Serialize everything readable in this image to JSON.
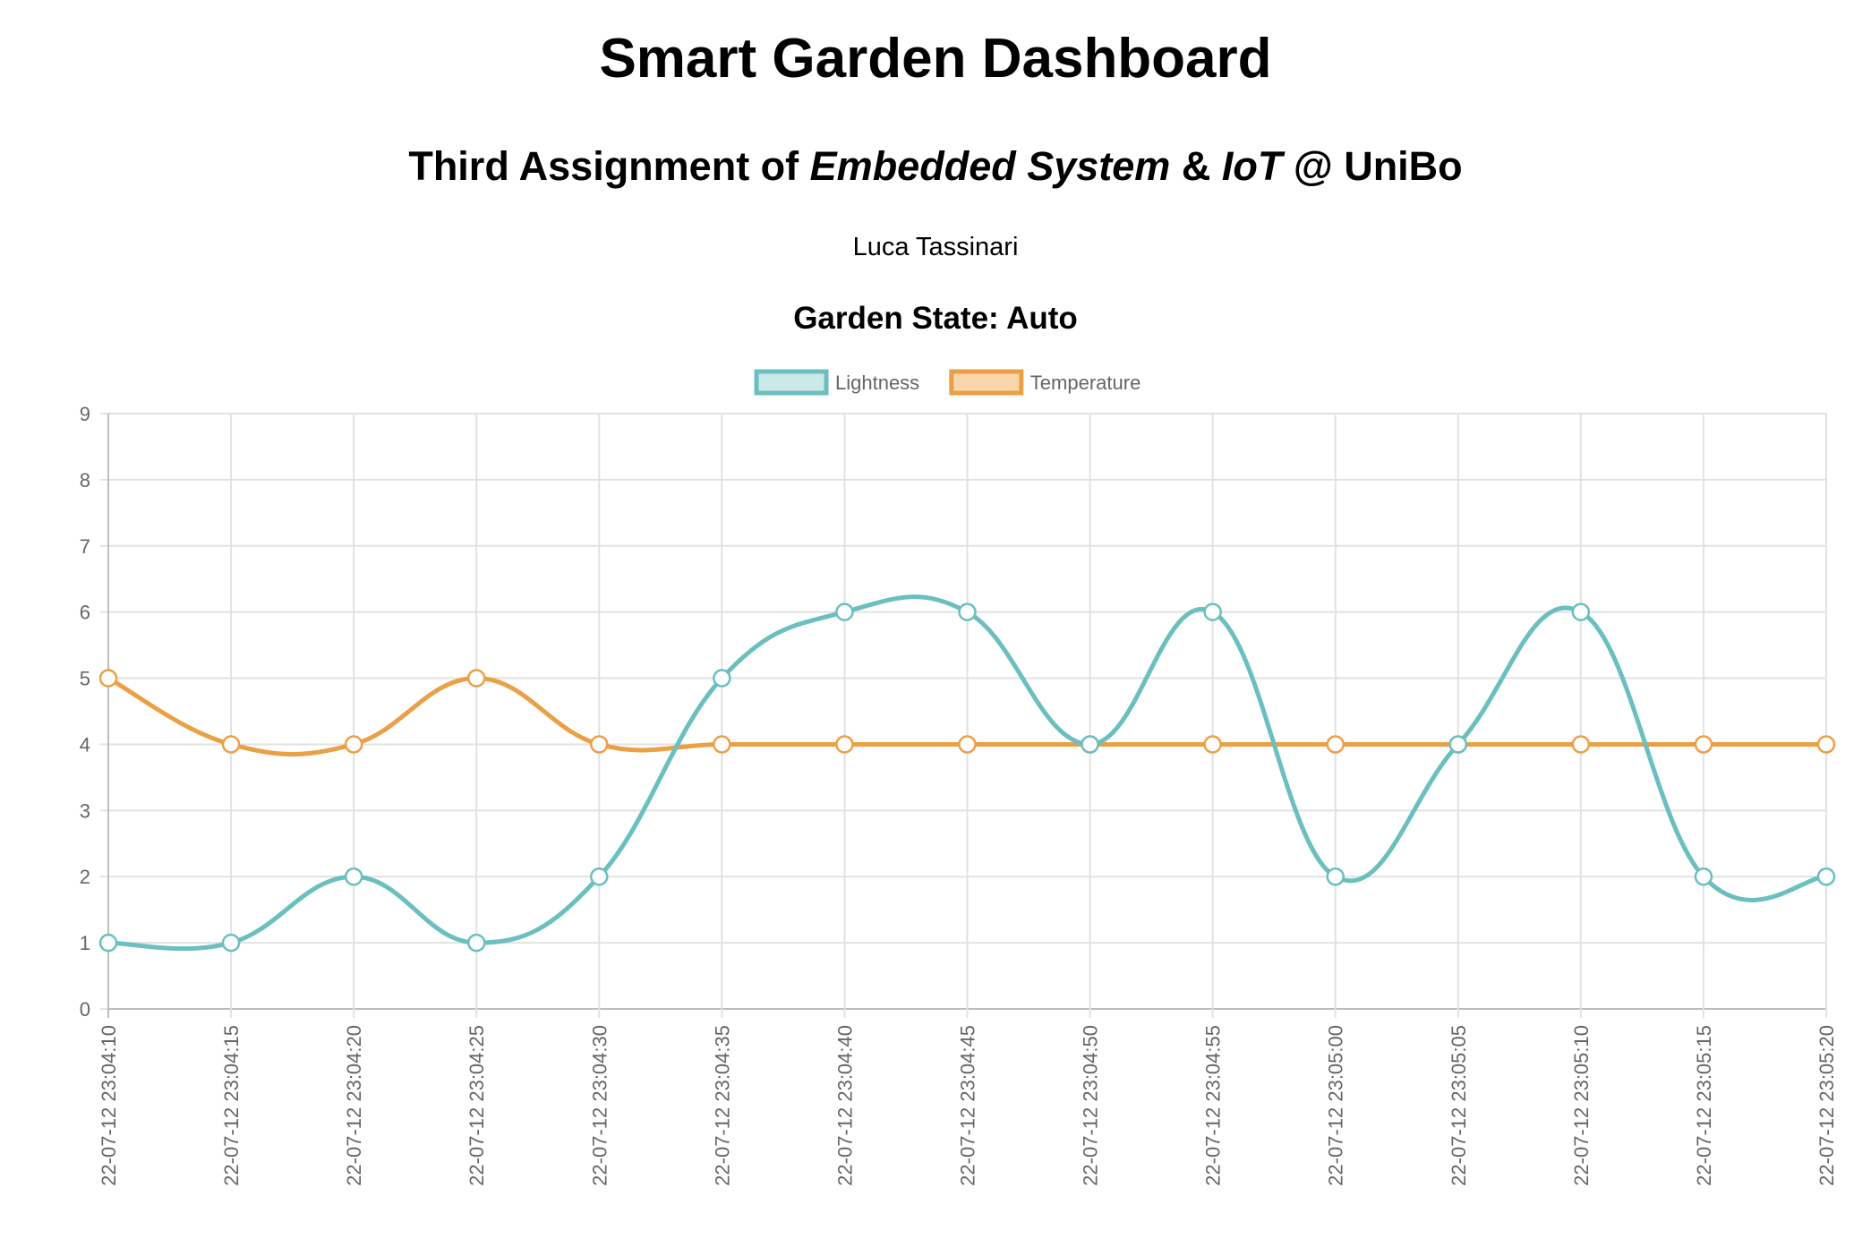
{
  "header": {
    "title": "Smart Garden Dashboard",
    "subtitle_prefix": "Third Assignment of ",
    "subtitle_em1": "Embedded System",
    "subtitle_mid": " & ",
    "subtitle_em2": "IoT",
    "subtitle_suffix": " @ UniBo",
    "author": "Luca Tassinari",
    "state": "Garden State: Auto"
  },
  "chart_data": {
    "type": "line",
    "title": "",
    "xlabel": "",
    "ylabel": "",
    "ylim": [
      0,
      9
    ],
    "yticks": [
      0,
      1,
      2,
      3,
      4,
      5,
      6,
      7,
      8,
      9
    ],
    "grid": true,
    "legend_position": "top-center",
    "categories": [
      "22-07-12 23:04:10",
      "22-07-12 23:04:15",
      "22-07-12 23:04:20",
      "22-07-12 23:04:25",
      "22-07-12 23:04:30",
      "22-07-12 23:04:35",
      "22-07-12 23:04:40",
      "22-07-12 23:04:45",
      "22-07-12 23:04:50",
      "22-07-12 23:04:55",
      "22-07-12 23:05:00",
      "22-07-12 23:05:05",
      "22-07-12 23:05:10",
      "22-07-12 23:05:15",
      "22-07-12 23:05:20"
    ],
    "series": [
      {
        "name": "Lightness",
        "color": "#6bbfc0",
        "fill": "#cce9e9",
        "values": [
          1,
          1,
          2,
          1,
          2,
          5,
          6,
          6,
          4,
          6,
          2,
          4,
          6,
          2,
          2
        ]
      },
      {
        "name": "Temperature",
        "color": "#eba046",
        "fill": "#f9d5aa",
        "values": [
          5,
          4,
          4,
          5,
          4,
          4,
          4,
          4,
          4,
          4,
          4,
          4,
          4,
          4,
          4
        ]
      }
    ]
  }
}
